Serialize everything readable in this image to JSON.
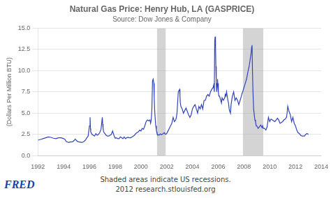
{
  "chart_data": {
    "type": "line",
    "title": "Natural Gas Price: Henry Hub, LA (GASPRICE)",
    "subtitle": "Source: Dow Jones & Company",
    "y_label": "(Dollars Per Million BTU)",
    "annotations": [
      "Shaded areas indicate US recessions.",
      "2012 research.stlouisfed.org",
      "FRED"
    ],
    "color": "#3344bb",
    "grid": "y",
    "xlim": [
      1992,
      2014
    ],
    "ylim": [
      0,
      15
    ],
    "xticks": [
      1992,
      1994,
      1996,
      1998,
      2000,
      2002,
      2004,
      2006,
      2008,
      2010,
      2012,
      2014
    ],
    "yticks": [
      {
        "value": 0,
        "label": "0.0"
      },
      2.5,
      {
        "value": 5,
        "label": "5.0"
      },
      7.5,
      {
        "value": 10,
        "label": "10.0"
      },
      12.5,
      {
        "value": 15,
        "label": "15.0"
      }
    ],
    "recessions": [
      [
        2001.25,
        2001.92
      ],
      [
        2007.92,
        2009.5
      ]
    ],
    "x": [
      1992.0,
      1992.2,
      1992.4,
      1992.6,
      1992.8,
      1993.0,
      1993.2,
      1993.4,
      1993.6,
      1993.8,
      1994.0,
      1994.1,
      1994.2,
      1994.3,
      1994.4,
      1994.5,
      1994.6,
      1994.7,
      1994.8,
      1994.9,
      1995.0,
      1995.1,
      1995.2,
      1995.3,
      1995.4,
      1995.5,
      1995.6,
      1995.7,
      1995.8,
      1995.9,
      1996.0,
      1996.05,
      1996.08,
      1996.1,
      1996.2,
      1996.3,
      1996.4,
      1996.5,
      1996.6,
      1996.7,
      1996.8,
      1996.9,
      1997.0,
      1997.03,
      1997.06,
      1997.1,
      1997.2,
      1997.3,
      1997.4,
      1997.5,
      1997.6,
      1997.7,
      1997.8,
      1997.9,
      1998.0,
      1998.1,
      1998.2,
      1998.3,
      1998.4,
      1998.5,
      1998.6,
      1998.7,
      1998.8,
      1998.9,
      1999.0,
      1999.1,
      1999.2,
      1999.3,
      1999.4,
      1999.5,
      1999.6,
      1999.7,
      1999.8,
      1999.9,
      2000.0,
      2000.1,
      2000.2,
      2000.3,
      2000.4,
      2000.5,
      2000.6,
      2000.7,
      2000.75,
      2000.8,
      2000.85,
      2000.9,
      2000.95,
      2001.0,
      2001.03,
      2001.06,
      2001.1,
      2001.15,
      2001.2,
      2001.22,
      2001.25,
      2001.3,
      2001.4,
      2001.5,
      2001.6,
      2001.7,
      2001.8,
      2001.85,
      2001.9,
      2001.92,
      2002.0,
      2002.1,
      2002.2,
      2002.3,
      2002.4,
      2002.5,
      2002.6,
      2002.7,
      2002.75,
      2002.8,
      2002.9,
      2003.0,
      2003.03,
      2003.06,
      2003.1,
      2003.2,
      2003.3,
      2003.4,
      2003.5,
      2003.6,
      2003.7,
      2003.8,
      2003.9,
      2004.0,
      2004.1,
      2004.2,
      2004.3,
      2004.4,
      2004.5,
      2004.6,
      2004.7,
      2004.8,
      2004.9,
      2005.0,
      2005.1,
      2005.2,
      2005.3,
      2005.4,
      2005.5,
      2005.6,
      2005.65,
      2005.7,
      2005.73,
      2005.76,
      2005.79,
      2005.82,
      2005.85,
      2005.88,
      2005.92,
      2005.95,
      2005.98,
      2006.0,
      2006.02,
      2006.05,
      2006.1,
      2006.2,
      2006.25,
      2006.3,
      2006.4,
      2006.5,
      2006.55,
      2006.6,
      2006.65,
      2006.7,
      2006.75,
      2006.8,
      2006.85,
      2006.9,
      2006.95,
      2007.0,
      2007.1,
      2007.2,
      2007.3,
      2007.4,
      2007.5,
      2007.6,
      2007.7,
      2007.8,
      2007.85,
      2007.9,
      2007.92,
      2008.0,
      2008.1,
      2008.2,
      2008.3,
      2008.4,
      2008.5,
      2008.55,
      2008.6,
      2008.63,
      2008.66,
      2008.7,
      2008.75,
      2008.8,
      2008.85,
      2008.9,
      2008.95,
      2009.0,
      2009.1,
      2009.2,
      2009.3,
      2009.4,
      2009.45,
      2009.5,
      2009.6,
      2009.7,
      2009.8,
      2009.9,
      2010.0,
      2010.1,
      2010.2,
      2010.3,
      2010.4,
      2010.5,
      2010.6,
      2010.7,
      2010.8,
      2010.9,
      2011.0,
      2011.1,
      2011.2,
      2011.3,
      2011.35,
      2011.4,
      2011.45,
      2011.5,
      2011.6,
      2011.7,
      2011.8,
      2011.9,
      2012.0,
      2012.1,
      2012.2,
      2012.3,
      2012.4,
      2012.5,
      2012.6,
      2012.7,
      2012.8,
      2012.9,
      2013.0
    ],
    "values": [
      1.82,
      1.9,
      2.0,
      2.1,
      2.2,
      2.15,
      2.05,
      2.0,
      2.1,
      2.1,
      2.0,
      1.9,
      1.65,
      1.6,
      1.55,
      1.6,
      1.6,
      1.65,
      1.75,
      1.95,
      1.75,
      1.65,
      1.6,
      1.58,
      1.55,
      1.6,
      1.7,
      1.85,
      2.1,
      2.3,
      3.5,
      4.5,
      3.2,
      2.8,
      2.5,
      2.4,
      2.3,
      2.6,
      2.4,
      2.5,
      2.7,
      3.1,
      4.5,
      3.7,
      3.2,
      2.8,
      2.6,
      2.4,
      2.3,
      2.3,
      2.4,
      2.5,
      2.9,
      2.4,
      2.05,
      2.1,
      2.0,
      2.0,
      2.2,
      2.1,
      2.0,
      2.2,
      2.0,
      2.1,
      2.15,
      2.1,
      2.1,
      2.2,
      2.3,
      2.4,
      2.6,
      2.7,
      2.8,
      3.0,
      2.9,
      3.2,
      3.1,
      3.5,
      4.0,
      4.2,
      4.1,
      4.2,
      3.8,
      4.2,
      5.5,
      8.8,
      9.0,
      8.5,
      7.0,
      5.5,
      4.5,
      3.5,
      3.0,
      2.8,
      2.6,
      2.5,
      2.4,
      2.55,
      2.45,
      2.55,
      2.7,
      2.6,
      2.5,
      2.5,
      2.6,
      2.9,
      3.2,
      3.5,
      3.8,
      4.5,
      4.0,
      4.2,
      4.5,
      5.0,
      7.5,
      7.8,
      7.0,
      6.2,
      5.8,
      5.5,
      5.0,
      5.3,
      5.6,
      5.2,
      4.8,
      4.5,
      4.8,
      5.5,
      5.8,
      6.0,
      5.5,
      5.0,
      5.8,
      5.5,
      6.0,
      5.5,
      6.5,
      6.5,
      7.0,
      7.2,
      7.0,
      7.5,
      7.8,
      8.0,
      8.3,
      7.5,
      13.5,
      14.0,
      13.2,
      10.5,
      8.5,
      7.5,
      8.5,
      9.0,
      8.0,
      8.5,
      7.5,
      7.0,
      7.0,
      6.5,
      6.2,
      6.8,
      6.5,
      6.8,
      7.2,
      7.0,
      7.5,
      7.0,
      6.5,
      6.2,
      5.5,
      5.2,
      5.0,
      6.0,
      7.0,
      7.5,
      6.5,
      6.8,
      6.5,
      6.0,
      6.5,
      7.0,
      7.3,
      7.5,
      7.5,
      8.0,
      8.5,
      9.0,
      9.8,
      10.5,
      11.5,
      12.0,
      12.8,
      13.0,
      10.0,
      7.5,
      5.5,
      4.8,
      4.2,
      4.0,
      3.5,
      3.5,
      3.2,
      3.4,
      3.6,
      3.3,
      3.5,
      3.2,
      3.2,
      3.0,
      3.4,
      4.5,
      4.0,
      4.3,
      4.2,
      4.1,
      4.0,
      4.2,
      4.4,
      4.2,
      3.8,
      3.9,
      4.0,
      4.2,
      4.3,
      4.5,
      5.0,
      5.8,
      5.8,
      5.2,
      4.8,
      4.0,
      4.5,
      3.8,
      3.5,
      3.0,
      2.7,
      2.6,
      2.4,
      2.3,
      2.3,
      2.3,
      2.5,
      2.6,
      2.5
    ]
  }
}
